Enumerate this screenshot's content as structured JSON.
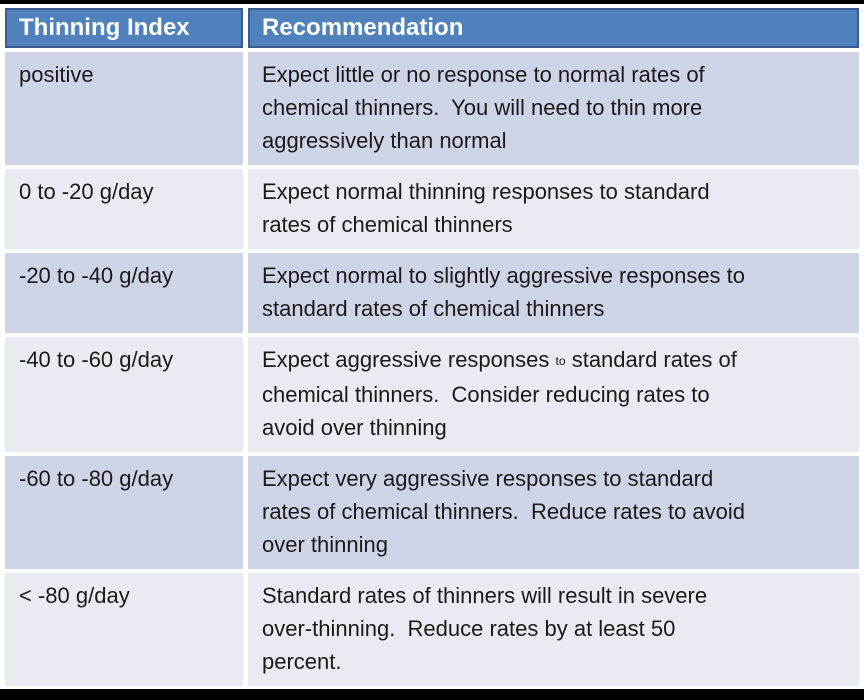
{
  "colors": {
    "header_bg": "#4F81BD",
    "header_border": "#3A5F8F",
    "band_dark": "#CED4E6",
    "band_light": "#E9EBF3",
    "body_text": "#1a1a1a",
    "header_text": "#ffffff"
  },
  "table": {
    "headers": [
      "Thinning Index",
      "Recommendation"
    ],
    "rows": [
      {
        "index": "positive",
        "recommendation": "Expect little or no response to normal rates of\nchemical thinners.  You will need to thin more\naggressively than normal"
      },
      {
        "index": "0 to -20 g/day",
        "recommendation": "Expect normal thinning responses to standard\nrates of chemical thinners"
      },
      {
        "index": "-20 to -40 g/day",
        "recommendation": "Expect normal to slightly aggressive responses to\nstandard rates of chemical thinners"
      },
      {
        "index": "-40 to -60 g/day",
        "rec_parts": [
          "Expect aggressive responses ",
          "to",
          " standard rates of\nchemical thinners.  Consider reducing rates to\navoid over thinning"
        ]
      },
      {
        "index": "-60 to -80 g/day",
        "recommendation": "Expect very aggressive responses to standard\nrates of chemical thinners.  Reduce rates to avoid\nover thinning"
      },
      {
        "index": "< -80 g/day",
        "recommendation": "Standard rates of thinners will result in severe\nover-thinning.  Reduce rates by at least 50\npercent."
      }
    ]
  }
}
